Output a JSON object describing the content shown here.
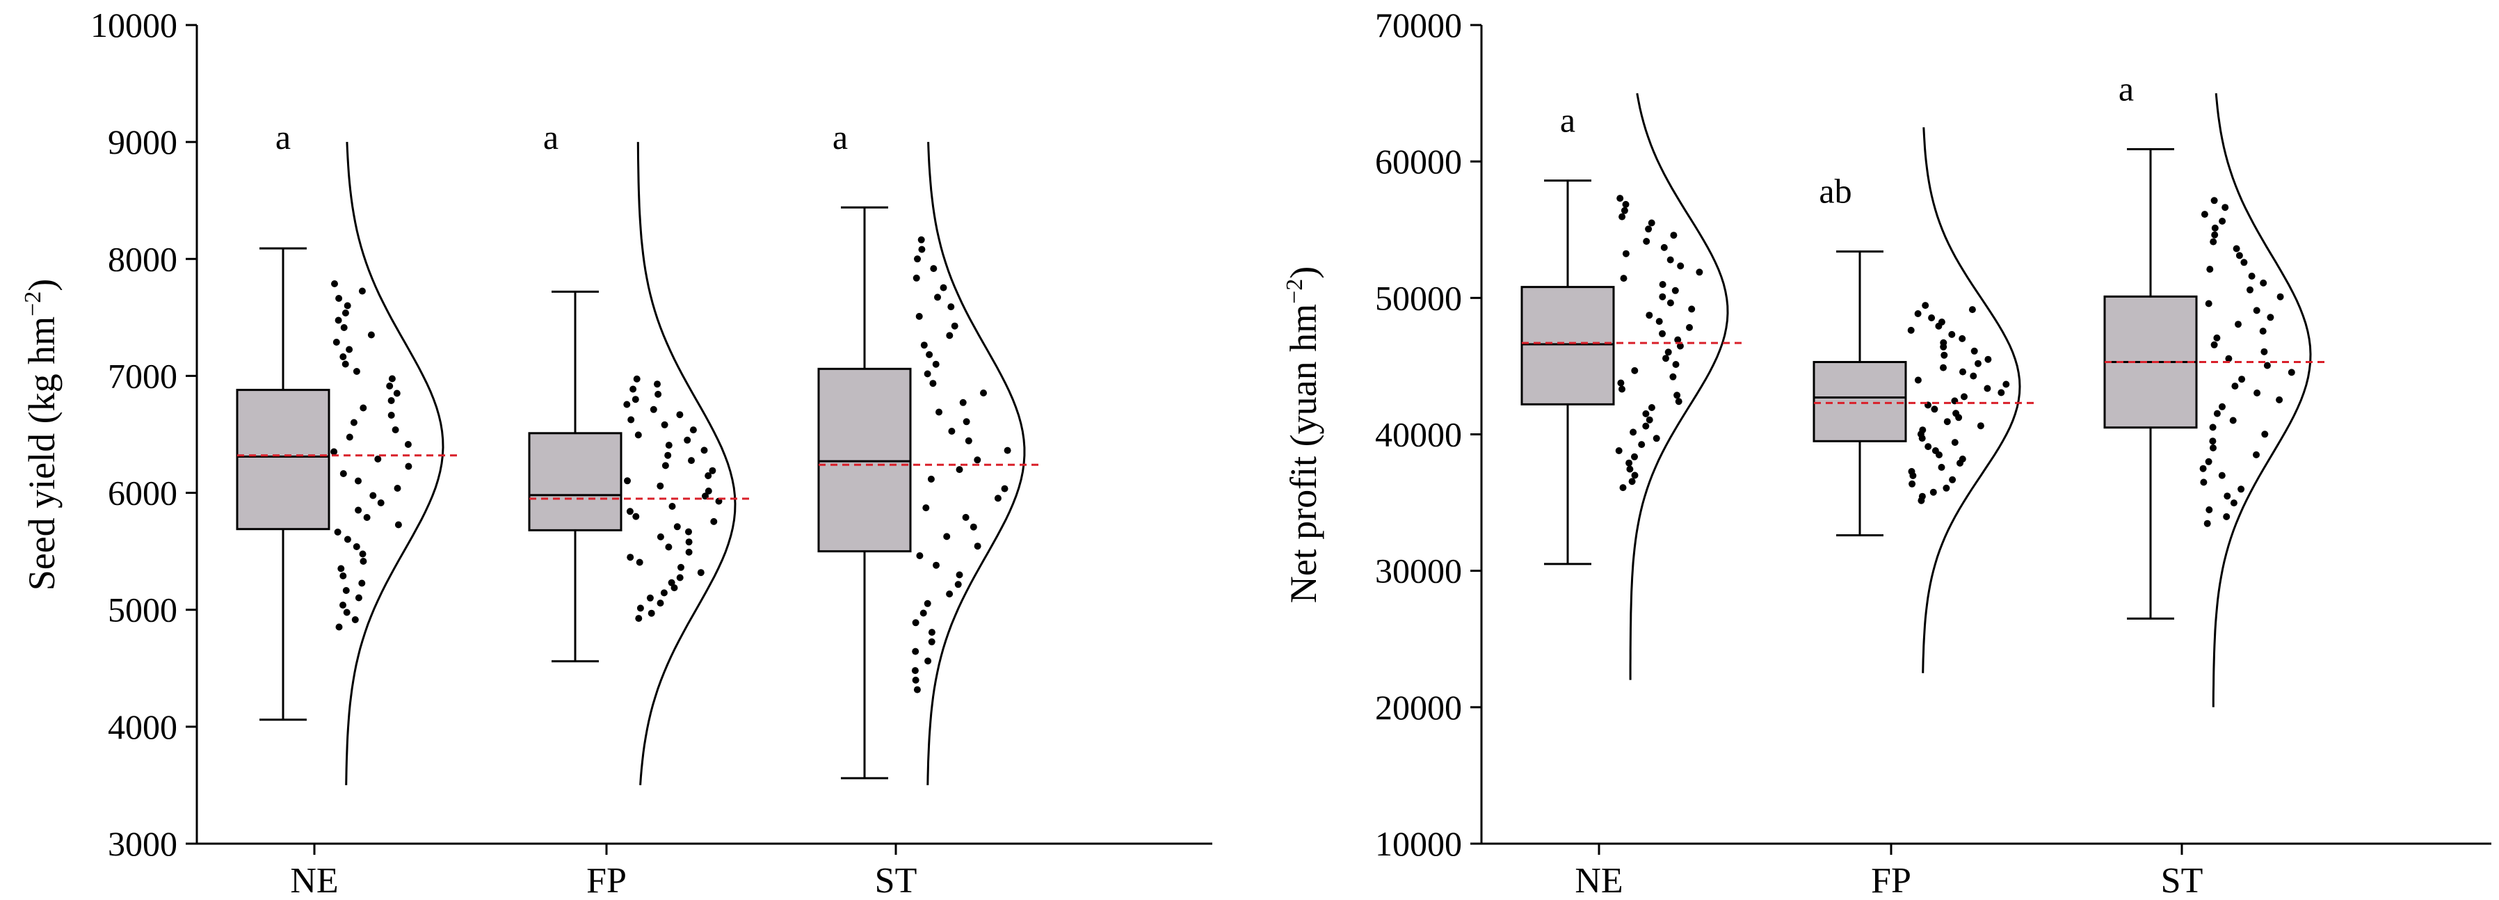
{
  "chart_data": [
    {
      "type": "box",
      "ylabel": "Seed yield (kg hm",
      "ylabel_sup": "−2",
      "ylabel_close": ")",
      "ylim": [
        3000,
        10000
      ],
      "yticks": [
        "3000",
        "4000",
        "5000",
        "6000",
        "7000",
        "8000",
        "9000",
        "10000"
      ],
      "categories": [
        "NE",
        "FP",
        "ST"
      ],
      "significance": [
        "a",
        "a",
        "a"
      ],
      "mean_line": "dashed red",
      "box_color": "#c0bbc0",
      "mean_color": "#d9202a",
      "groups": [
        {
          "name": "NE",
          "min": 4060,
          "q1": 5690,
          "median": 6310,
          "q3": 6880,
          "max": 8090,
          "mean": 6320,
          "density_range": [
            3500,
            9000
          ],
          "density_peak": 6400
        },
        {
          "name": "FP",
          "min": 4560,
          "q1": 5680,
          "median": 5980,
          "q3": 6510,
          "max": 7720,
          "mean": 5950,
          "density_range": [
            3500,
            9000
          ],
          "density_peak": 5900
        },
        {
          "name": "ST",
          "min": 3560,
          "q1": 5500,
          "median": 6270,
          "q3": 7060,
          "max": 8440,
          "mean": 6240,
          "density_range": [
            3500,
            9000
          ],
          "density_peak": 6350
        }
      ]
    },
    {
      "type": "box",
      "ylabel": "Net profit (yuan hm",
      "ylabel_sup": "−2",
      "ylabel_close": ")",
      "ylim": [
        10000,
        70000
      ],
      "yticks": [
        "10000",
        "20000",
        "30000",
        "40000",
        "50000",
        "60000",
        "70000"
      ],
      "categories": [
        "NE",
        "FP",
        "ST"
      ],
      "significance": [
        "a",
        "ab",
        "a"
      ],
      "mean_line": "dashed red",
      "box_color": "#c0bbc0",
      "mean_color": "#d9202a",
      "groups": [
        {
          "name": "NE",
          "min": 30500,
          "q1": 42200,
          "median": 46600,
          "q3": 50800,
          "max": 58600,
          "mean": 46700,
          "density_range": [
            22000,
            65000
          ],
          "density_peak": 49000
        },
        {
          "name": "FP",
          "min": 32600,
          "q1": 39500,
          "median": 42700,
          "q3": 45300,
          "max": 53400,
          "mean": 42300,
          "density_range": [
            22500,
            62500
          ],
          "density_peak": 43500
        },
        {
          "name": "ST",
          "min": 26500,
          "q1": 40500,
          "median": 45300,
          "q3": 50100,
          "max": 60900,
          "mean": 45300,
          "density_range": [
            20000,
            65000
          ],
          "density_peak": 45800
        }
      ]
    }
  ]
}
